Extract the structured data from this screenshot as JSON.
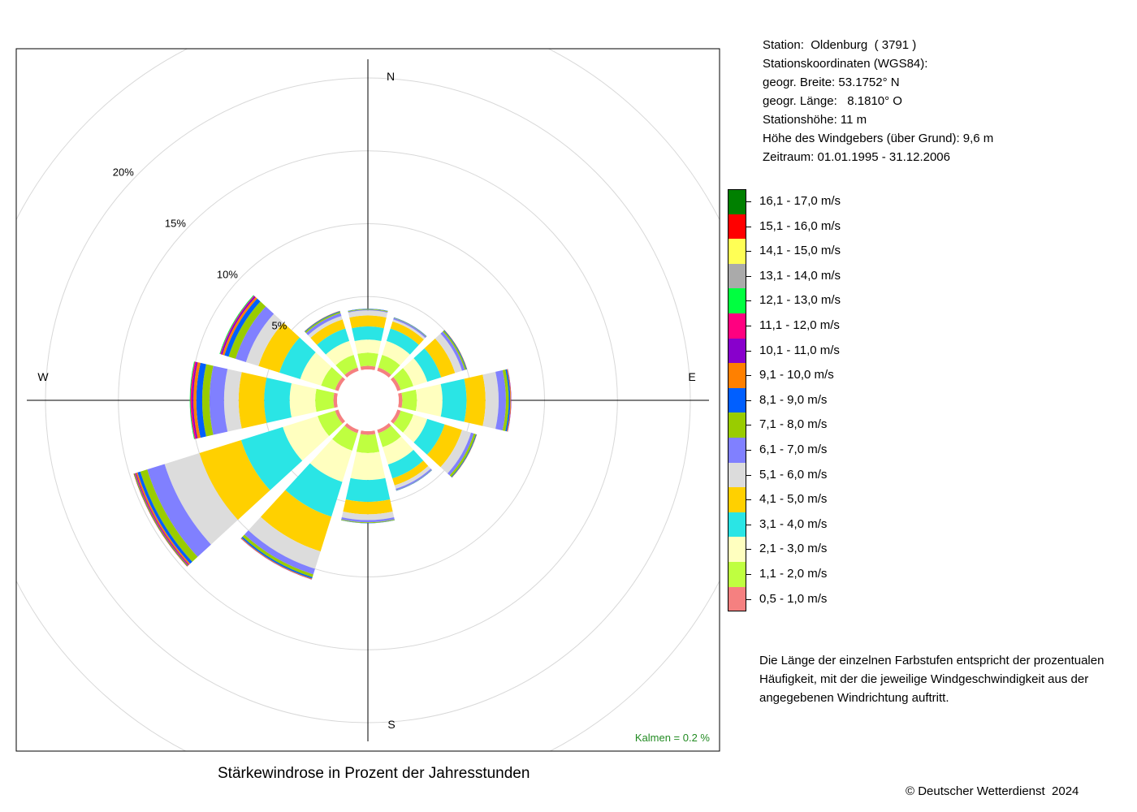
{
  "station": {
    "line1": "Station:  Oldenburg  ( 3791 )",
    "line2": "Stationskoordinaten (WGS84):",
    "line3": "geogr. Breite: 53.1752° N",
    "line4": "geogr. Länge:   8.1810° O",
    "line5": "Stationshöhe: 11 m",
    "line6": "Höhe des Windgebers (über Grund): 9,6 m",
    "line7": "Zeitraum: 01.01.1995 - 31.12.2006"
  },
  "note": "Die Länge der einzelnen Farbstufen entspricht der prozentualen Häufigkeit, mit der die jeweilige Windgeschwindigkeit aus der angegebenen Windrichtung auftritt.",
  "footer": {
    "title": "Stärkewindrose in Prozent der Jahresstunden",
    "copyright": "© Deutscher Wetterdienst  2024"
  },
  "chart_data": {
    "type": "wind-rose",
    "title": "Stärkewindrose in Prozent der Jahresstunden",
    "directions_deg": [
      0,
      30,
      60,
      90,
      120,
      150,
      180,
      210,
      240,
      270,
      300,
      330
    ],
    "compass_labels": {
      "N": "N",
      "E": "E",
      "S": "S",
      "W": "W"
    },
    "radial_ticks": [
      {
        "value": 5,
        "label": "5%"
      },
      {
        "value": 10,
        "label": "10%"
      },
      {
        "value": 15,
        "label": "15%"
      },
      {
        "value": 20,
        "label": "20%"
      }
    ],
    "calm": "Kalmen  =  0.2 %",
    "calm_color": "#228b22",
    "classes": [
      {
        "label": "0,5 - 1,0 m/s",
        "color": "#f58080"
      },
      {
        "label": "1,1 - 2,0 m/s",
        "color": "#bfff40"
      },
      {
        "label": "2,1 - 3,0 m/s",
        "color": "#ffffbf"
      },
      {
        "label": "3,1 - 4,0 m/s",
        "color": "#2ae5e5"
      },
      {
        "label": "4,1 - 5,0 m/s",
        "color": "#ffd000"
      },
      {
        "label": "5,1 - 6,0 m/s",
        "color": "#dcdcdc"
      },
      {
        "label": "6,1 - 7,0 m/s",
        "color": "#8080ff"
      },
      {
        "label": "7,1 - 8,0 m/s",
        "color": "#99cc00"
      },
      {
        "label": "8,1 - 9,0 m/s",
        "color": "#005fff"
      },
      {
        "label": "9,1 - 10,0 m/s",
        "color": "#ff8000"
      },
      {
        "label": "10,1 - 11,0 m/s",
        "color": "#8800cc"
      },
      {
        "label": "11,1 - 12,0 m/s",
        "color": "#ff0080"
      },
      {
        "label": "12,1 - 13,0 m/s",
        "color": "#00ff40"
      },
      {
        "label": "13,1 - 14,0 m/s",
        "color": "#aaaaaa"
      },
      {
        "label": "14,1 - 15,0 m/s",
        "color": "#ffff55"
      },
      {
        "label": "15,1 - 16,0 m/s",
        "color": "#ff0000"
      },
      {
        "label": "16,1 - 17,0 m/s",
        "color": "#008000"
      }
    ],
    "series": [
      {
        "direction": 0,
        "values": [
          0.25,
          0.9,
          0.9,
          0.9,
          0.75,
          0.35,
          0.05,
          0.05,
          0.02,
          0,
          0,
          0,
          0,
          0,
          0,
          0,
          0
        ]
      },
      {
        "direction": 30,
        "values": [
          0.25,
          0.9,
          1.0,
          0.9,
          0.5,
          0.15,
          0.1,
          0.03,
          0.02,
          0,
          0,
          0,
          0,
          0,
          0,
          0,
          0
        ]
      },
      {
        "direction": 60,
        "values": [
          0.25,
          0.9,
          1.0,
          1.0,
          1.0,
          0.5,
          0.2,
          0.1,
          0.05,
          0.02,
          0,
          0,
          0,
          0,
          0,
          0,
          0
        ]
      },
      {
        "direction": 90,
        "values": [
          0.25,
          1.0,
          1.75,
          1.65,
          1.3,
          0.9,
          0.5,
          0.2,
          0.1,
          0.05,
          0.02,
          0,
          0,
          0,
          0,
          0,
          0
        ]
      },
      {
        "direction": 120,
        "values": [
          0.25,
          0.9,
          1.0,
          1.25,
          1.25,
          0.65,
          0.2,
          0.15,
          0.05,
          0.02,
          0,
          0,
          0,
          0,
          0,
          0,
          0
        ]
      },
      {
        "direction": 150,
        "values": [
          0.25,
          1.0,
          1.25,
          1.0,
          0.5,
          0.25,
          0.1,
          0.02,
          0.02,
          0,
          0,
          0,
          0,
          0,
          0,
          0,
          0
        ]
      },
      {
        "direction": 180,
        "values": [
          0.25,
          1.25,
          1.85,
          1.5,
          0.85,
          0.4,
          0.15,
          0.05,
          0.02,
          0,
          0,
          0,
          0,
          0,
          0,
          0,
          0
        ]
      },
      {
        "direction": 210,
        "values": [
          0.25,
          1.25,
          2.25,
          2.5,
          2.5,
          1.25,
          0.4,
          0.2,
          0.1,
          0.05,
          0.02,
          0,
          0,
          0,
          0,
          0,
          0
        ]
      },
      {
        "direction": 240,
        "values": [
          0.25,
          1.25,
          2.5,
          3.0,
          3.0,
          2.5,
          1.25,
          0.5,
          0.2,
          0.1,
          0.05,
          0.05,
          0.05,
          0,
          0,
          0.03,
          0
        ]
      },
      {
        "direction": 270,
        "values": [
          0.25,
          1.25,
          1.75,
          1.75,
          1.75,
          1.0,
          1.0,
          0.5,
          0.4,
          0.2,
          0.1,
          0.1,
          0.05,
          0,
          0,
          0,
          0
        ]
      },
      {
        "direction": 300,
        "values": [
          0.25,
          1.0,
          1.5,
          1.5,
          1.5,
          0.9,
          0.75,
          0.5,
          0.3,
          0.15,
          0.1,
          0.05,
          0.05,
          0,
          0,
          0,
          0
        ]
      },
      {
        "direction": 330,
        "values": [
          0.25,
          0.9,
          1.0,
          0.9,
          0.65,
          0.25,
          0.2,
          0.1,
          0.05,
          0.02,
          0,
          0,
          0,
          0,
          0,
          0,
          0
        ]
      }
    ]
  }
}
